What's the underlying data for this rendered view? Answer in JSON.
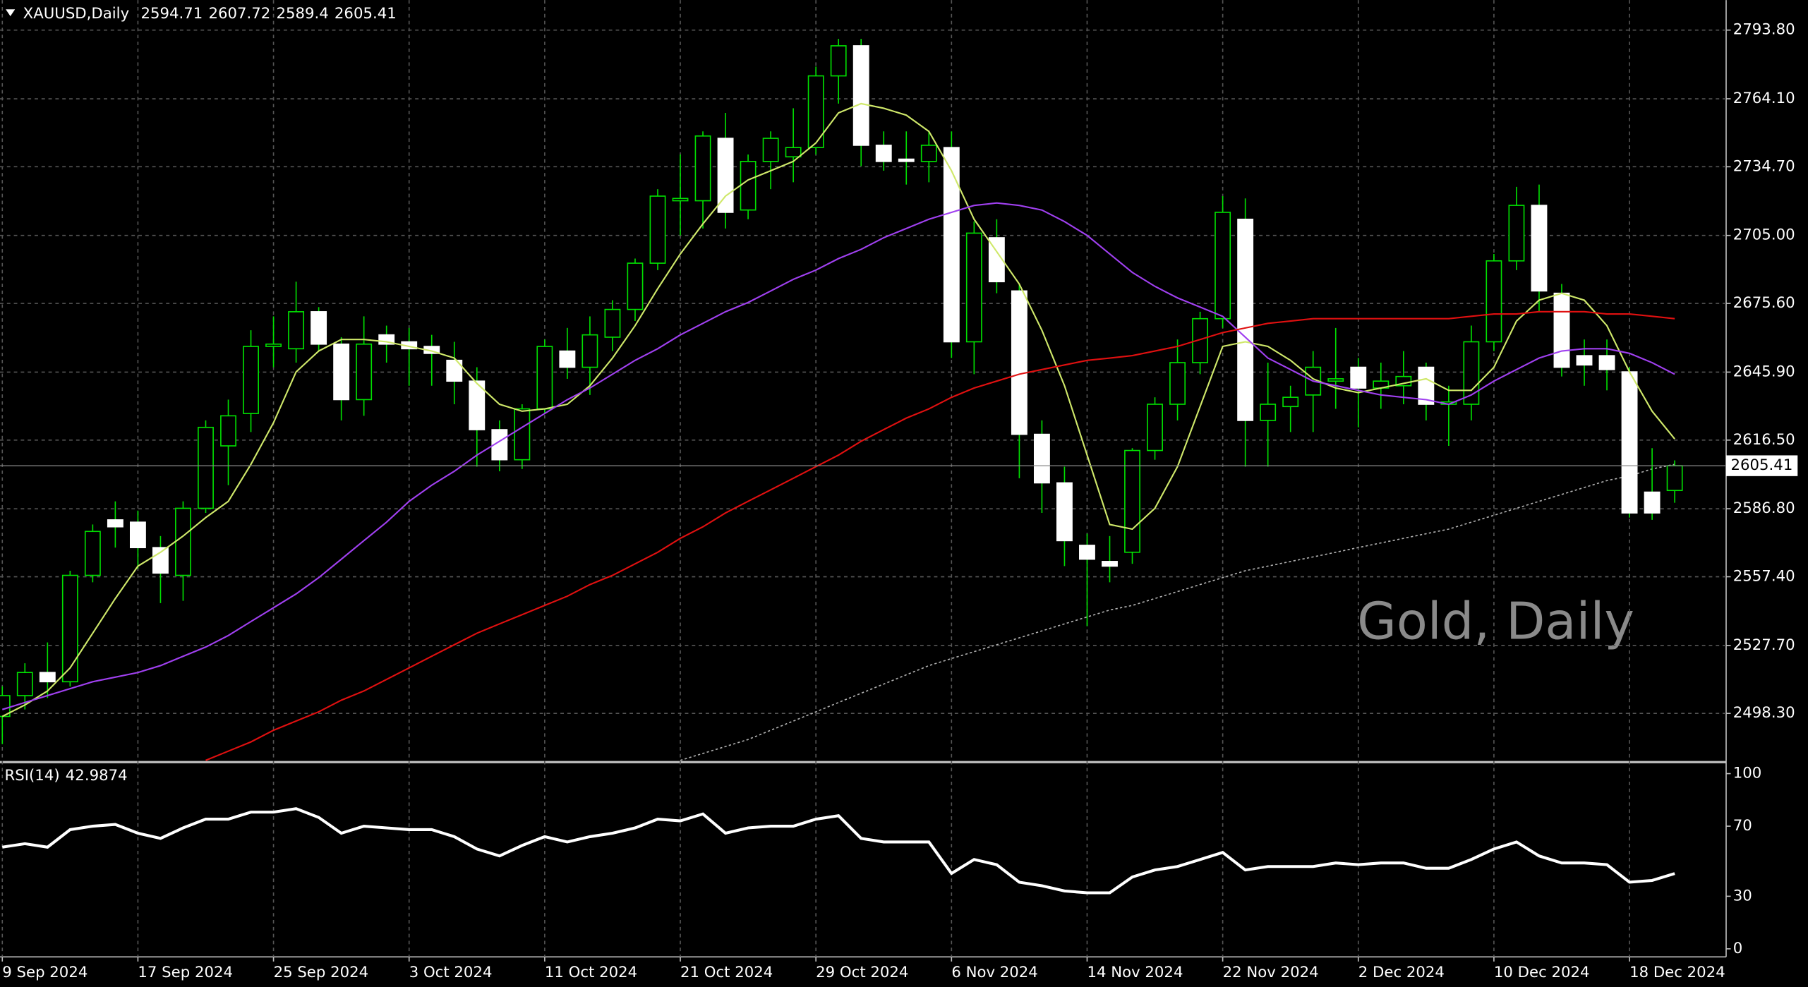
{
  "chart_data": [
    {
      "type": "candlestick",
      "title": "XAUUSD,Daily",
      "annotation": "Gold, Daily",
      "categories": [
        "9 Sep 2024",
        null,
        null,
        null,
        null,
        null,
        "17 Sep 2024",
        null,
        null,
        null,
        null,
        null,
        "25 Sep 2024",
        null,
        null,
        null,
        null,
        null,
        "3 Oct 2024",
        null,
        null,
        null,
        null,
        null,
        "11 Oct 2024",
        null,
        null,
        null,
        null,
        null,
        "21 Oct 2024",
        null,
        null,
        null,
        null,
        null,
        "29 Oct 2024",
        null,
        null,
        null,
        null,
        null,
        "6 Nov 2024",
        null,
        null,
        null,
        null,
        null,
        "14 Nov 2024",
        null,
        null,
        null,
        null,
        null,
        "22 Nov 2024",
        null,
        null,
        null,
        null,
        null,
        "2 Dec 2024",
        null,
        null,
        null,
        null,
        null,
        "10 Dec 2024",
        null,
        null,
        null,
        null,
        null,
        "18 Dec 2024",
        null,
        null
      ],
      "open": [
        2497,
        2506,
        2516,
        2512,
        2558,
        2582,
        2581,
        2570,
        2558,
        2587,
        2614,
        2628,
        2657,
        2656,
        2672,
        2658,
        2634,
        2662,
        2659,
        2657,
        2651,
        2642,
        2621,
        2608,
        2630,
        2655,
        2648,
        2661,
        2673,
        2693,
        2720,
        2720,
        2747,
        2716,
        2737,
        2739,
        2743,
        2774,
        2787,
        2744,
        2738,
        2737,
        2743,
        2659,
        2704,
        2681,
        2619,
        2598,
        2571,
        2564,
        2568,
        2612,
        2632,
        2650,
        2669,
        2712,
        2625,
        2631,
        2636,
        2642,
        2648,
        2639,
        2640,
        2648,
        2632,
        2632,
        2659,
        2694,
        2718,
        2680,
        2653,
        2653,
        2646,
        2594,
        2594.71
      ],
      "high": [
        2510,
        2520,
        2529,
        2560,
        2580,
        2590,
        2586,
        2575,
        2590,
        2625,
        2634,
        2664,
        2670,
        2685,
        2674,
        2661,
        2670,
        2666,
        2665,
        2662,
        2659,
        2648,
        2625,
        2632,
        2660,
        2665,
        2670,
        2677,
        2695,
        2725,
        2740,
        2750,
        2758,
        2740,
        2750,
        2760,
        2778,
        2790,
        2790,
        2750,
        2750,
        2750,
        2750,
        2711,
        2712,
        2684,
        2625,
        2605,
        2576,
        2575,
        2613,
        2635,
        2660,
        2672,
        2722,
        2721,
        2650,
        2640,
        2655,
        2665,
        2652,
        2650,
        2655,
        2650,
        2640,
        2666,
        2697,
        2726,
        2727,
        2684,
        2660,
        2660,
        2648,
        2613,
        2607.72
      ],
      "low": [
        2485,
        2500,
        2505,
        2510,
        2555,
        2570,
        2561,
        2546,
        2547,
        2585,
        2597,
        2620,
        2648,
        2650,
        2655,
        2625,
        2627,
        2650,
        2640,
        2640,
        2632,
        2605,
        2603,
        2604,
        2628,
        2643,
        2636,
        2655,
        2668,
        2690,
        2705,
        2708,
        2708,
        2712,
        2725,
        2728,
        2740,
        2762,
        2735,
        2733,
        2727,
        2728,
        2652,
        2645,
        2680,
        2600,
        2585,
        2562,
        2536,
        2555,
        2563,
        2608,
        2625,
        2645,
        2665,
        2605,
        2605,
        2620,
        2620,
        2630,
        2622,
        2630,
        2632,
        2625,
        2614,
        2625,
        2655,
        2690,
        2672,
        2644,
        2640,
        2638,
        2583,
        2582,
        2589.4
      ],
      "close": [
        2506,
        2516,
        2512,
        2558,
        2577,
        2579,
        2570,
        2559,
        2587,
        2622,
        2627,
        2657,
        2658,
        2672,
        2658,
        2634,
        2658,
        2658,
        2656,
        2654,
        2642,
        2621,
        2608,
        2630,
        2657,
        2648,
        2662,
        2673,
        2693,
        2722,
        2721,
        2748,
        2715,
        2737,
        2747,
        2743,
        2774,
        2787,
        2744,
        2737,
        2737,
        2744,
        2659,
        2706,
        2685,
        2619,
        2598,
        2573,
        2565,
        2562,
        2612,
        2632,
        2650,
        2669,
        2715,
        2625,
        2632,
        2635,
        2648,
        2643,
        2639,
        2642,
        2644,
        2632,
        2633,
        2659,
        2694,
        2718,
        2681,
        2648,
        2649,
        2647,
        2585,
        2585,
        2605.41
      ],
      "series": [
        {
          "color": "#cfe86a",
          "values": [
            2497,
            2502,
            2508,
            2518,
            2533,
            2548,
            2562,
            2568,
            2575,
            2583,
            2590,
            2606,
            2624,
            2646,
            2655,
            2660,
            2660,
            2659,
            2657,
            2655,
            2652,
            2641,
            2632,
            2629,
            2630,
            2632,
            2640,
            2652,
            2666,
            2682,
            2697,
            2710,
            2722,
            2729,
            2733,
            2737,
            2745,
            2758,
            2762,
            2760,
            2757,
            2750,
            2733,
            2712,
            2698,
            2684,
            2664,
            2640,
            2610,
            2580,
            2578,
            2587,
            2605,
            2631,
            2657,
            2659,
            2657,
            2651,
            2643,
            2639,
            2637,
            2639,
            2641,
            2643,
            2638,
            2638,
            2648,
            2668,
            2677,
            2680,
            2677,
            2666,
            2646,
            2629,
            2617
          ]
        },
        {
          "color": "#a040f0",
          "values": [
            2500,
            2503,
            2506,
            2509,
            2512,
            2514,
            2516,
            2519,
            2523,
            2527,
            2532,
            2538,
            2544,
            2550,
            2557,
            2565,
            2573,
            2581,
            2590,
            2597,
            2603,
            2610,
            2616,
            2622,
            2628,
            2634,
            2639,
            2645,
            2651,
            2656,
            2662,
            2667,
            2672,
            2676,
            2681,
            2686,
            2690,
            2695,
            2699,
            2704,
            2708,
            2712,
            2715,
            2718,
            2719,
            2718,
            2716,
            2711,
            2705,
            2697,
            2689,
            2683,
            2678,
            2674,
            2670,
            2661,
            2652,
            2647,
            2642,
            2640,
            2638,
            2636,
            2635,
            2634,
            2632,
            2636,
            2642,
            2647,
            2652,
            2655,
            2656,
            2656,
            2654,
            2650,
            2645
          ]
        },
        {
          "color": "#e01010",
          "values": [
            null,
            null,
            null,
            null,
            null,
            null,
            null,
            null,
            null,
            2478,
            2482,
            2486,
            2491,
            2495,
            2499,
            2504,
            2508,
            2513,
            2518,
            2523,
            2528,
            2533,
            2537,
            2541,
            2545,
            2549,
            2554,
            2558,
            2563,
            2568,
            2574,
            2579,
            2585,
            2590,
            2595,
            2600,
            2605,
            2610,
            2616,
            2621,
            2626,
            2630,
            2635,
            2639,
            2642,
            2645,
            2647,
            2649,
            2651,
            2652,
            2653,
            2655,
            2657,
            2660,
            2663,
            2665,
            2667,
            2668,
            2669,
            2669,
            2669,
            2669,
            2669,
            2669,
            2669,
            2670,
            2671,
            2671,
            2672,
            2672,
            2672,
            2671,
            2671,
            2670,
            2669
          ]
        },
        {
          "color": "#b0b0b0",
          "dotted": true,
          "values": [
            null,
            null,
            null,
            null,
            null,
            null,
            null,
            null,
            null,
            null,
            null,
            null,
            null,
            null,
            null,
            null,
            null,
            null,
            null,
            null,
            null,
            null,
            null,
            null,
            null,
            null,
            null,
            null,
            null,
            null,
            2478,
            2481,
            2484,
            2487,
            2491,
            2495,
            2499,
            2503,
            2507,
            2511,
            2515,
            2519,
            2522,
            2525,
            2528,
            2531,
            2534,
            2537,
            2540,
            2543,
            2545,
            2548,
            2551,
            2554,
            2557,
            2560,
            2562,
            2564,
            2566,
            2568,
            2570,
            2572,
            2574,
            2576,
            2578,
            2581,
            2584,
            2587,
            2590,
            2593,
            2596,
            2599,
            2601,
            2604,
            2606
          ]
        }
      ],
      "ylim": [
        2477.75,
        2806.76
      ],
      "yticks": [
        {
          "value": 2793.8,
          "label": "2793.80"
        },
        {
          "value": 2764.1,
          "label": "2764.10"
        },
        {
          "value": 2734.7,
          "label": "2734.70"
        },
        {
          "value": 2705,
          "label": "2705.00"
        },
        {
          "value": 2675.6,
          "label": "2675.60"
        },
        {
          "value": 2645.9,
          "label": "2645.90"
        },
        {
          "value": 2616.5,
          "label": "2616.50"
        },
        {
          "value": 2586.8,
          "label": "2586.80"
        },
        {
          "value": 2557.4,
          "label": "2557.40"
        },
        {
          "value": 2527.7,
          "label": "2527.70"
        },
        {
          "value": 2498.3,
          "label": "2498.30"
        }
      ],
      "grid": true,
      "up_color": "#00e000",
      "down_color": "#ffffff"
    },
    {
      "type": "line",
      "title": "RSI(14)",
      "series": [
        {
          "color": "#ffffff",
          "values": [
            58,
            60,
            58,
            68,
            70,
            71,
            66,
            63,
            69,
            74,
            74,
            78,
            78,
            80,
            75,
            66,
            70,
            69,
            68,
            68,
            64,
            57,
            53,
            59,
            64,
            61,
            64,
            66,
            69,
            74,
            73,
            77,
            66,
            69,
            70,
            70,
            74,
            76,
            63,
            61,
            61,
            61,
            43,
            51,
            48,
            38,
            36,
            33,
            32,
            32,
            41,
            45,
            47,
            51,
            55,
            45,
            47,
            47,
            47,
            49,
            48,
            49,
            49,
            46,
            46,
            51,
            57,
            61,
            53,
            49,
            49,
            48,
            38,
            39,
            42.9874
          ]
        }
      ],
      "ylim": [
        0,
        100
      ],
      "yticks": [
        100,
        70,
        30,
        0
      ]
    }
  ]
}
